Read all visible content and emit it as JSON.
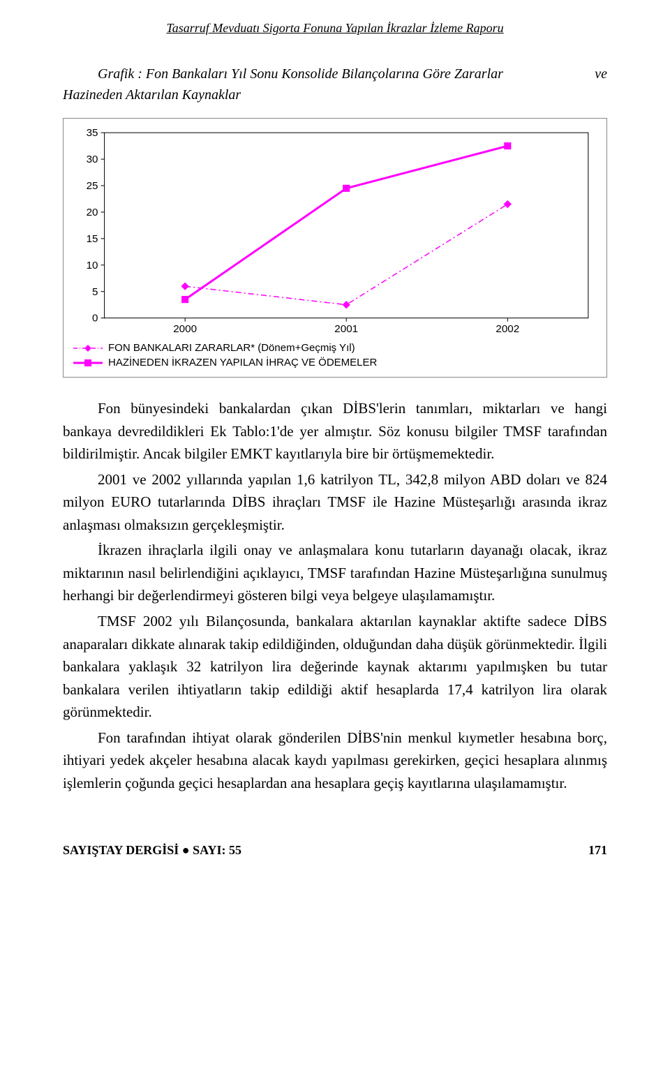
{
  "header": {
    "running_title": "Tasarruf Mevduatı Sigorta Fonuna Yapılan İkrazlar İzleme Raporu"
  },
  "chart": {
    "title_main": "Grafik : Fon Bankaları Yıl Sonu Konsolide Bilançolarına Göre Zararlar",
    "title_ve": "ve",
    "title_line2": "Hazineden Aktarılan Kaynaklar",
    "type": "line",
    "background_color": "#ffffff",
    "border_color": "#888888",
    "axis_color": "#000000",
    "axis_font_family": "Arial",
    "axis_fontsize": 15,
    "ylim": [
      0,
      35
    ],
    "ytick_step": 5,
    "yticks": [
      "0",
      "5",
      "10",
      "15",
      "20",
      "25",
      "30",
      "35"
    ],
    "categories": [
      "2000",
      "2001",
      "2002"
    ],
    "series": [
      {
        "name": "FON BANKALARI ZARARLAR* (Dönem+Geçmiş Yıl)",
        "color": "#ff00ff",
        "marker": "diamond",
        "marker_size": 9,
        "line_style": "dash-dot",
        "line_width": 1.5,
        "values": [
          6,
          2.5,
          21.5
        ]
      },
      {
        "name": "HAZİNEDEN İKRAZEN YAPILAN İHRAÇ VE ÖDEMELER",
        "color": "#ff00ff",
        "marker": "square",
        "marker_size": 10,
        "line_style": "solid",
        "line_width": 3,
        "values": [
          3.5,
          24.5,
          32.5
        ]
      }
    ]
  },
  "body": {
    "p1": "Fon bünyesindeki bankalardan çıkan DİBS'lerin tanımları, miktarları ve hangi bankaya devredildikleri Ek Tablo:1'de yer almıştır. Söz konusu bilgiler TMSF tarafından bildirilmiştir. Ancak bilgiler EMKT kayıtlarıyla bire bir örtüşmemektedir.",
    "p2": "2001 ve 2002 yıllarında yapılan 1,6 katrilyon TL, 342,8 milyon ABD doları ve 824 milyon EURO tutarlarında DİBS ihraçları TMSF ile Hazine Müsteşarlığı arasında ikraz anlaşması olmaksızın gerçekleşmiştir.",
    "p3": "İkrazen ihraçlarla ilgili onay ve anlaşmalara konu tutarların dayanağı olacak, ikraz miktarının nasıl belirlendiğini açıklayıcı, TMSF tarafından Hazine Müsteşarlığına sunulmuş herhangi bir değerlendirmeyi gösteren bilgi veya belgeye ulaşılamamıştır.",
    "p4": "TMSF 2002 yılı Bilançosunda, bankalara aktarılan kaynaklar aktifte sadece DİBS anaparaları dikkate alınarak takip edildiğinden, olduğundan daha düşük görünmektedir. İlgili bankalara yaklaşık 32 katrilyon lira değerinde kaynak aktarımı yapılmışken bu tutar bankalara verilen ihtiyatların takip edildiği aktif hesaplarda 17,4 katrilyon lira olarak görünmektedir.",
    "p5": "Fon tarafından ihtiyat olarak gönderilen DİBS'nin menkul kıymetler hesabına borç, ihtiyari yedek akçeler hesabına alacak kaydı yapılması gerekirken, geçici hesaplara alınmış işlemlerin çoğunda geçici hesaplardan ana hesaplara geçiş kayıtlarına ulaşılamamıştır."
  },
  "footer": {
    "journal": "SAYIŞTAY DERGİSİ ● SAYI: 55",
    "page": "171"
  }
}
